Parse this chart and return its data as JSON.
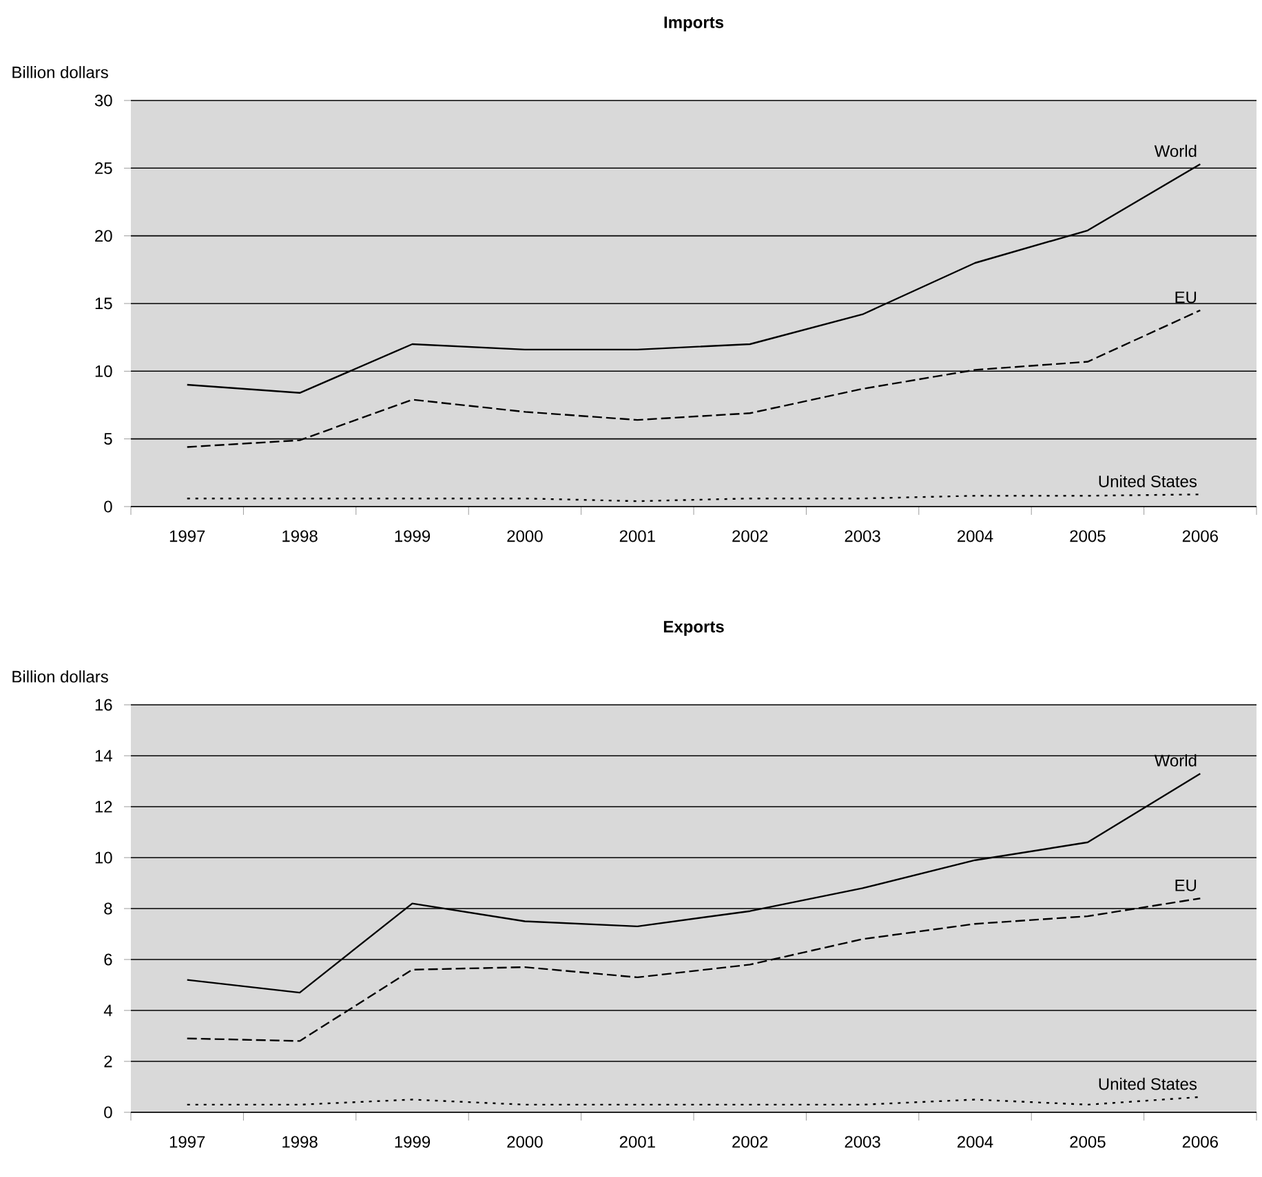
{
  "chart_data": [
    {
      "type": "line",
      "title": "Imports",
      "ylabel": "Billion dollars",
      "categories": [
        "1997",
        "1998",
        "1999",
        "2000",
        "2001",
        "2002",
        "2003",
        "2004",
        "2005",
        "2006"
      ],
      "ylim": [
        0,
        30
      ],
      "yticks": [
        0,
        5,
        10,
        15,
        20,
        25,
        30
      ],
      "grid": "y",
      "series": [
        {
          "name": "World",
          "color": "#000000",
          "line_style": "solid",
          "values": [
            9.0,
            8.4,
            12.0,
            11.6,
            11.6,
            12.0,
            14.2,
            18.0,
            20.4,
            25.3
          ]
        },
        {
          "name": "EU",
          "color": "#000000",
          "line_style": "dashed",
          "values": [
            4.4,
            4.9,
            7.9,
            7.0,
            6.4,
            6.9,
            8.7,
            10.1,
            10.7,
            14.5
          ]
        },
        {
          "name": "United States",
          "color": "#000000",
          "line_style": "dotted",
          "values": [
            0.6,
            0.6,
            0.6,
            0.6,
            0.4,
            0.6,
            0.6,
            0.8,
            0.8,
            0.9
          ]
        }
      ]
    },
    {
      "type": "line",
      "title": "Exports",
      "ylabel": "Billion dollars",
      "categories": [
        "1997",
        "1998",
        "1999",
        "2000",
        "2001",
        "2002",
        "2003",
        "2004",
        "2005",
        "2006"
      ],
      "ylim": [
        0,
        16
      ],
      "yticks": [
        0,
        2,
        4,
        6,
        8,
        10,
        12,
        14,
        16
      ],
      "grid": "y",
      "series": [
        {
          "name": "World",
          "color": "#000000",
          "line_style": "solid",
          "values": [
            5.2,
            4.7,
            8.2,
            7.5,
            7.3,
            7.9,
            8.8,
            9.9,
            10.6,
            13.3
          ]
        },
        {
          "name": "EU",
          "color": "#000000",
          "line_style": "dashed",
          "values": [
            2.9,
            2.8,
            5.6,
            5.7,
            5.3,
            5.8,
            6.8,
            7.4,
            7.7,
            8.4
          ]
        },
        {
          "name": "United States",
          "color": "#000000",
          "line_style": "dotted",
          "values": [
            0.3,
            0.3,
            0.5,
            0.3,
            0.3,
            0.3,
            0.3,
            0.5,
            0.3,
            0.6
          ]
        }
      ]
    }
  ]
}
